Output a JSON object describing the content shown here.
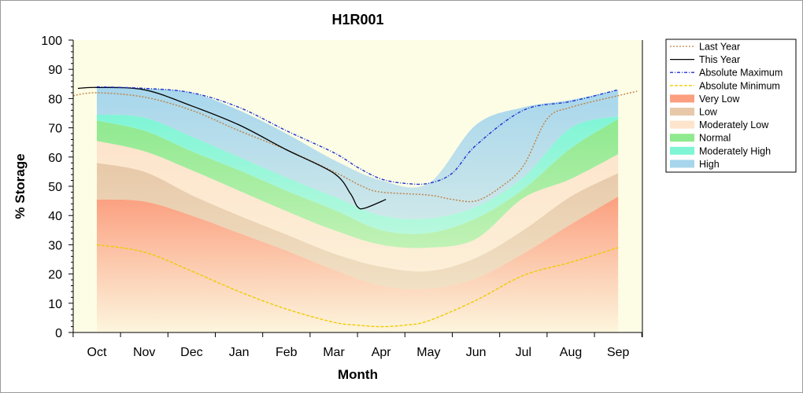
{
  "chart_data": {
    "type": "area",
    "title": "H1R001",
    "xlabel": "Month",
    "ylabel": "% Storage",
    "ylim": [
      0,
      100
    ],
    "yticks": [
      0,
      10,
      20,
      30,
      40,
      50,
      60,
      70,
      80,
      90,
      100
    ],
    "categories": [
      "Oct",
      "Nov",
      "Dec",
      "Jan",
      "Feb",
      "Mar",
      "Apr",
      "May",
      "Jun",
      "Jul",
      "Aug",
      "Sep"
    ],
    "grid": false,
    "legend_position": "right",
    "colors": {
      "plot_background": "#fdfde6",
      "axis": "#000000"
    },
    "bands": [
      {
        "name": "Very Low",
        "color": "#fb9f7f",
        "upper": [
          45.5,
          44.8,
          40,
          34,
          28,
          21.5,
          16,
          15,
          18.5,
          27,
          37,
          46.5
        ]
      },
      {
        "name": "Low",
        "color": "#e7c9a9",
        "upper": [
          58,
          55,
          47,
          40,
          33.5,
          27,
          22.5,
          21,
          25.5,
          35,
          46.5,
          54.5
        ]
      },
      {
        "name": "Moderately Low",
        "color": "#fde4cc",
        "upper": [
          65.5,
          62,
          55.5,
          48.5,
          41.5,
          35,
          30,
          29,
          32,
          46,
          52.5,
          61
        ]
      },
      {
        "name": "Normal",
        "color": "#8fe98f",
        "upper": [
          72.5,
          69,
          62,
          55.5,
          48.5,
          42,
          35,
          34,
          39,
          49,
          63,
          73
        ]
      },
      {
        "name": "Moderately High",
        "color": "#7ff5d6",
        "upper": [
          74.5,
          73.5,
          67,
          60,
          53,
          46.5,
          40,
          39,
          43,
          53,
          70,
          74
        ]
      },
      {
        "name": "High",
        "color": "#a7d6ec",
        "upper": [
          84,
          83.5,
          82,
          76,
          68,
          59,
          52,
          51,
          71,
          77,
          79.5,
          83
        ]
      }
    ],
    "series": [
      {
        "name": "Last Year",
        "color": "#c08040",
        "style": "dotted",
        "x": [
          -0.5,
          0,
          1,
          2,
          3,
          4,
          5,
          5.6,
          6,
          7,
          7.5,
          8,
          8.5,
          9,
          9.5,
          10,
          11,
          11.4
        ],
        "y": [
          81,
          82,
          80.5,
          76,
          69,
          62.5,
          55,
          50,
          48,
          47,
          45.5,
          45,
          49.5,
          57,
          73,
          77,
          81,
          82.5
        ]
      },
      {
        "name": "This Year",
        "color": "#000000",
        "style": "solid",
        "x": [
          -0.4,
          0,
          1,
          2,
          3,
          4,
          5,
          5.35,
          5.5,
          5.65,
          6.1
        ],
        "y": [
          83.5,
          83.8,
          83,
          77.5,
          71,
          62.5,
          54.5,
          47.5,
          43,
          42.5,
          45.5
        ]
      },
      {
        "name": "Absolute Maximum",
        "color": "#1e32d2",
        "style": "dashdot",
        "x": [
          0,
          1,
          2,
          3,
          4,
          5,
          5.5,
          6,
          6.5,
          7,
          7.5,
          8,
          9,
          10,
          11
        ],
        "y": [
          84,
          83.5,
          82,
          77,
          69,
          61.5,
          56.5,
          52.5,
          51,
          51,
          54.5,
          64,
          76,
          79,
          83
        ]
      },
      {
        "name": "Absolute Minimum",
        "color": "#eecc00",
        "style": "dashed",
        "x": [
          0,
          1,
          2,
          3,
          4,
          5,
          5.5,
          6,
          6.5,
          7,
          8,
          9,
          10,
          11
        ],
        "y": [
          30,
          27.5,
          21,
          14,
          8,
          3.5,
          2.5,
          2,
          2.5,
          4,
          11,
          19.5,
          24,
          29
        ]
      }
    ],
    "legend_entries": [
      {
        "label": "Last Year",
        "kind": "line",
        "color": "#c08040",
        "dash": "2,2"
      },
      {
        "label": "This Year",
        "kind": "line",
        "color": "#000000",
        "dash": ""
      },
      {
        "label": "Absolute Maximum",
        "kind": "line",
        "color": "#1e32d2",
        "dash": "4,2,1,2"
      },
      {
        "label": "Absolute Minimum",
        "kind": "line",
        "color": "#eecc00",
        "dash": "4,2"
      },
      {
        "label": "Very Low",
        "kind": "box",
        "color": "#fb9f7f"
      },
      {
        "label": "Low",
        "kind": "box",
        "color": "#e7c9a9"
      },
      {
        "label": "Moderately Low",
        "kind": "box",
        "color": "#fde4cc"
      },
      {
        "label": "Normal",
        "kind": "box",
        "color": "#8fe98f"
      },
      {
        "label": "Moderately High",
        "kind": "box",
        "color": "#7ff5d6"
      },
      {
        "label": "High",
        "kind": "box",
        "color": "#a7d6ec"
      }
    ]
  }
}
